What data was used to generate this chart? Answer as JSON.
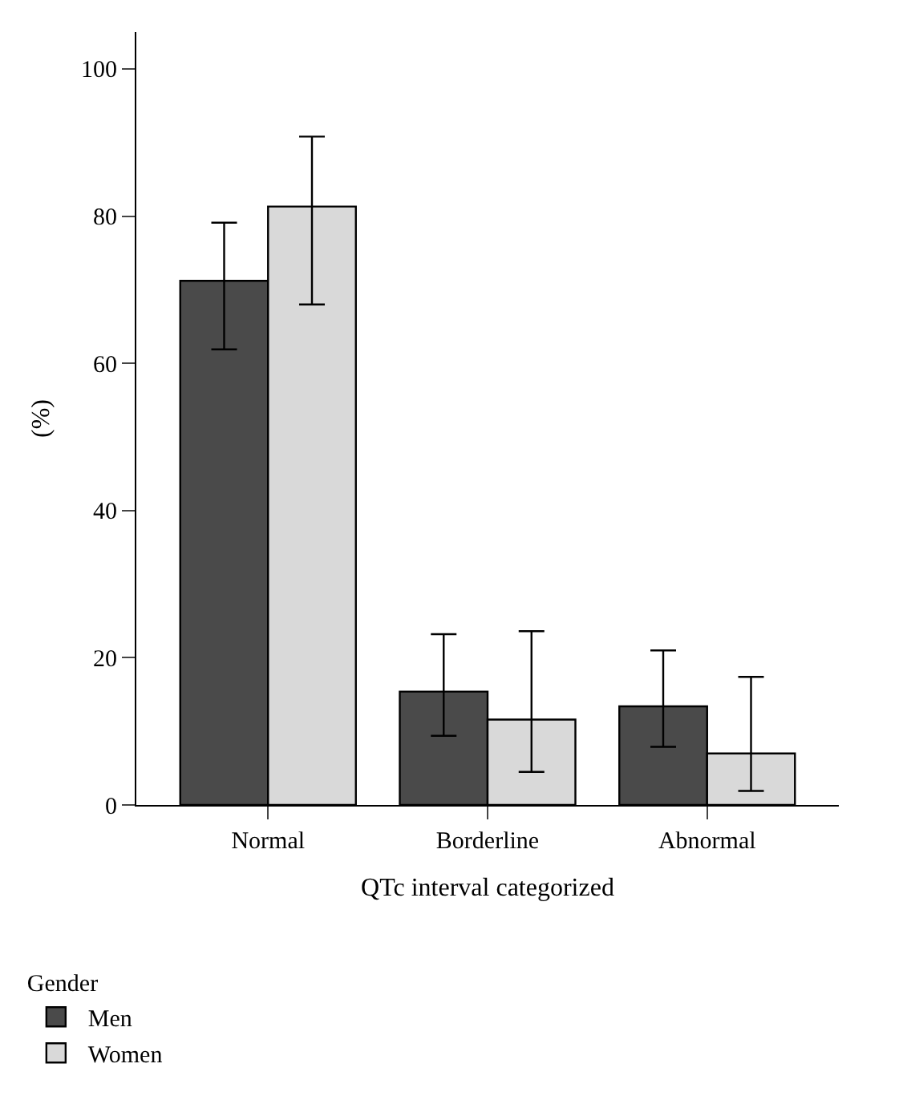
{
  "chart_data": {
    "type": "bar",
    "xlabel": "QTc interval categorized",
    "ylabel": "(%)",
    "legend_title": "Gender",
    "categories": [
      "Normal",
      "Borderline",
      "Abnormal"
    ],
    "series": [
      {
        "name": "Men",
        "color": "#4a4a4a",
        "values": [
          71.2,
          15.4,
          13.4
        ],
        "errors": [
          [
            61.9,
            79.1
          ],
          [
            9.4,
            23.2
          ],
          [
            7.9,
            21.0
          ]
        ]
      },
      {
        "name": "Women",
        "color": "#d9d9d9",
        "values": [
          81.3,
          11.6,
          7.0
        ],
        "errors": [
          [
            68.0,
            90.8
          ],
          [
            4.5,
            23.6
          ],
          [
            1.9,
            17.4
          ]
        ]
      }
    ],
    "ylim": [
      0,
      105
    ],
    "yticks": [
      0,
      20,
      40,
      60,
      80,
      100
    ],
    "legend": "bottom left"
  }
}
